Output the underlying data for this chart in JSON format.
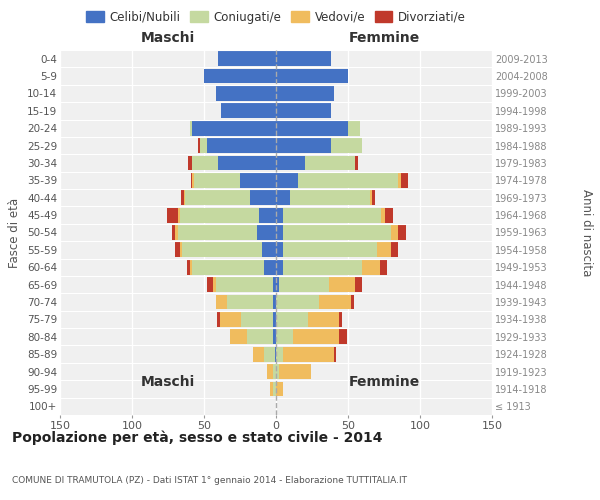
{
  "age_groups": [
    "100+",
    "95-99",
    "90-94",
    "85-89",
    "80-84",
    "75-79",
    "70-74",
    "65-69",
    "60-64",
    "55-59",
    "50-54",
    "45-49",
    "40-44",
    "35-39",
    "30-34",
    "25-29",
    "20-24",
    "15-19",
    "10-14",
    "5-9",
    "0-4"
  ],
  "birth_years": [
    "≤ 1913",
    "1914-1918",
    "1919-1923",
    "1924-1928",
    "1929-1933",
    "1934-1938",
    "1939-1943",
    "1944-1948",
    "1949-1953",
    "1954-1958",
    "1959-1963",
    "1964-1968",
    "1969-1973",
    "1974-1978",
    "1979-1983",
    "1984-1988",
    "1989-1993",
    "1994-1998",
    "1999-2003",
    "2004-2008",
    "2009-2013"
  ],
  "males": {
    "celibi": [
      0,
      0,
      0,
      1,
      2,
      2,
      2,
      2,
      8,
      10,
      13,
      12,
      18,
      25,
      40,
      48,
      58,
      38,
      42,
      50,
      40
    ],
    "coniugati": [
      0,
      2,
      2,
      7,
      18,
      22,
      32,
      40,
      50,
      55,
      55,
      55,
      45,
      32,
      18,
      5,
      2,
      0,
      0,
      0,
      0
    ],
    "vedovi": [
      0,
      2,
      4,
      8,
      12,
      15,
      8,
      2,
      2,
      2,
      2,
      1,
      1,
      1,
      0,
      0,
      0,
      0,
      0,
      0,
      0
    ],
    "divorziati": [
      0,
      0,
      0,
      0,
      0,
      2,
      0,
      4,
      2,
      3,
      2,
      8,
      2,
      1,
      3,
      1,
      0,
      0,
      0,
      0,
      0
    ]
  },
  "females": {
    "nubili": [
      0,
      0,
      0,
      0,
      0,
      0,
      0,
      2,
      5,
      5,
      5,
      5,
      10,
      15,
      20,
      38,
      50,
      38,
      40,
      50,
      38
    ],
    "coniugate": [
      0,
      0,
      2,
      5,
      12,
      22,
      30,
      35,
      55,
      65,
      75,
      68,
      55,
      70,
      35,
      22,
      8,
      0,
      0,
      0,
      0
    ],
    "vedove": [
      0,
      5,
      22,
      35,
      32,
      22,
      22,
      18,
      12,
      10,
      5,
      3,
      2,
      2,
      0,
      0,
      0,
      0,
      0,
      0,
      0
    ],
    "divorziate": [
      0,
      0,
      0,
      2,
      5,
      2,
      2,
      5,
      5,
      5,
      5,
      5,
      2,
      5,
      2,
      0,
      0,
      0,
      0,
      0,
      0
    ]
  },
  "colors": {
    "celibi": "#4472c4",
    "coniugati": "#c5d9a0",
    "vedovi": "#f0bc5e",
    "divorziati": "#c0392b"
  },
  "bg_color": "#f0f0f0",
  "grid_color": "#ffffff",
  "xlim": 150,
  "title": "Popolazione per età, sesso e stato civile - 2014",
  "subtitle": "COMUNE DI TRAMUTOLA (PZ) - Dati ISTAT 1° gennaio 2014 - Elaborazione TUTTITALIA.IT",
  "ylabel": "Fasce di età",
  "right_ylabel": "Anni di nascita",
  "maschi_label": "Maschi",
  "femmine_label": "Femmine",
  "legend_labels": [
    "Celibi/Nubili",
    "Coniugati/e",
    "Vedovi/e",
    "Divorziati/e"
  ],
  "xtick_vals": [
    150,
    100,
    50,
    0,
    50,
    100,
    150
  ]
}
